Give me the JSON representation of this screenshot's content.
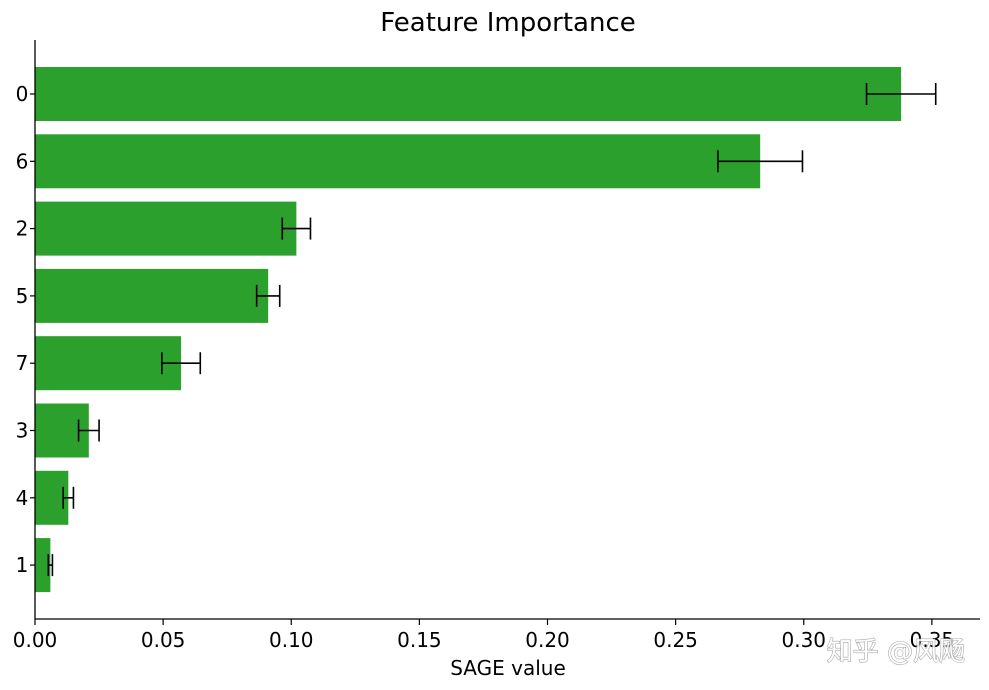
{
  "chart_data": {
    "type": "bar",
    "orientation": "horizontal",
    "title": "Feature Importance",
    "xlabel": "SAGE value",
    "ylabel": "",
    "xlim": [
      0.0,
      0.37
    ],
    "x_ticks": [
      0.0,
      0.05,
      0.1,
      0.15,
      0.2,
      0.25,
      0.3,
      0.35
    ],
    "x_tick_labels": [
      "0.00",
      "0.05",
      "0.10",
      "0.15",
      "0.20",
      "0.25",
      "0.30",
      "0.35"
    ],
    "categories": [
      "0",
      "6",
      "2",
      "5",
      "7",
      "3",
      "4",
      "1"
    ],
    "values": [
      0.338,
      0.283,
      0.102,
      0.091,
      0.057,
      0.021,
      0.013,
      0.006
    ],
    "errors": [
      0.0135,
      0.0165,
      0.0055,
      0.0045,
      0.0075,
      0.004,
      0.002,
      0.0008
    ],
    "bar_color": "#2ca02c",
    "error_color": "#000000",
    "grid": false
  },
  "watermark": "知乎 @风飏"
}
